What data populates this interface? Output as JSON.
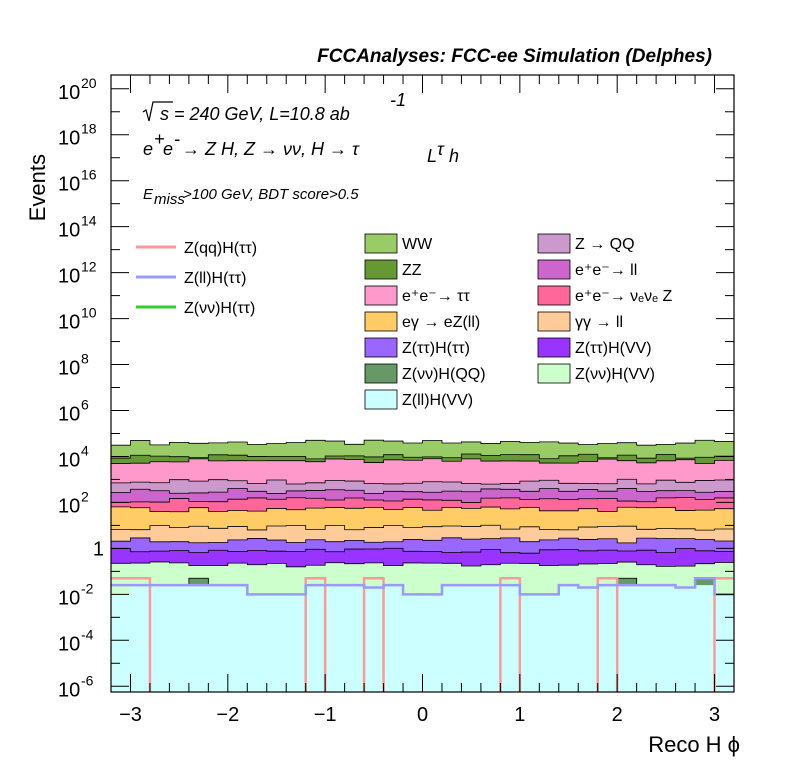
{
  "chart_data": {
    "type": "stacked-histogram",
    "header": "FCCAnalyses: FCC-ee Simulation (Delphes)",
    "annotations": {
      "energy": "s = 240 GeV, L=10.8 ab",
      "energy_exp": "-1",
      "process_a": "e",
      "process_b": "e",
      "process_c": " → Z H, Z  → νν, H  → τ",
      "process_d": "τ",
      "sub_L": "L",
      "sub_h": "h",
      "cut_a": "E",
      "cut_sub": "miss",
      "cut_b": ">100 GeV, BDT score>0.5"
    },
    "xlabel": "Reco H ϕ",
    "ylabel": "Events",
    "x_range": [
      -3.2,
      3.2
    ],
    "y_range_log10": [
      -6.25,
      20.6
    ],
    "log_y": true,
    "grid": false,
    "bins": 32,
    "x_ticks": [
      "−3",
      "−2",
      "−1",
      "0",
      "1",
      "2",
      "3"
    ],
    "x_tick_values": [
      -3,
      -2,
      -1,
      0,
      1,
      2,
      3
    ],
    "y_ticks": [
      {
        "base": "10",
        "exp": "20",
        "value": 20
      },
      {
        "base": "10",
        "exp": "18",
        "value": 18
      },
      {
        "base": "10",
        "exp": "16",
        "value": 16
      },
      {
        "base": "10",
        "exp": "14",
        "value": 14
      },
      {
        "base": "10",
        "exp": "12",
        "value": 12
      },
      {
        "base": "10",
        "exp": "10",
        "value": 10
      },
      {
        "base": "10",
        "exp": "8",
        "value": 8
      },
      {
        "base": "10",
        "exp": "6",
        "value": 6
      },
      {
        "base": "10",
        "exp": "4",
        "value": 4
      },
      {
        "base": "10",
        "exp": "2",
        "value": 2
      },
      {
        "base": "1",
        "exp": "",
        "value": 0
      },
      {
        "base": "10",
        "exp": "-2",
        "value": -2
      },
      {
        "base": "10",
        "exp": "-4",
        "value": -4
      },
      {
        "base": "10",
        "exp": "-6",
        "value": -6
      }
    ],
    "stacked_series": [
      {
        "name": "Z(ll)H(VV)",
        "color": "#ccffff",
        "level_log10": -2.0,
        "values_log10": [
          -2.0,
          -1.7,
          -1.6,
          -1.6,
          -1.6,
          -1.6,
          -1.6,
          -2.0,
          -2.0,
          -2.0,
          -1.6,
          -1.6,
          -1.6,
          -1.7,
          -1.6,
          -2.0,
          -2.0,
          -1.6,
          -1.6,
          -1.6,
          -1.6,
          -2.0,
          -2.0,
          -1.6,
          -1.7,
          -1.6,
          -1.6,
          -1.6,
          -1.6,
          -1.7,
          -1.6,
          -2.0
        ]
      },
      {
        "name": "Z(νν)H(QQ)",
        "color": "#669966",
        "level_log10": -1.3,
        "values_log10": [
          null,
          null,
          null,
          null,
          -1.3,
          null,
          null,
          null,
          null,
          null,
          null,
          null,
          -2.3,
          null,
          -2.3,
          null,
          -2.3,
          null,
          null,
          -2.3,
          null,
          null,
          null,
          null,
          null,
          null,
          -1.3,
          null,
          null,
          null,
          -1.3,
          null
        ]
      },
      {
        "name": "Z(νν)H(VV)",
        "color": "#ccffcc",
        "level_log10": -0.7
      },
      {
        "name": "Z(ττ)H(VV)",
        "color": "#9933ff",
        "level_log10": -0.1
      },
      {
        "name": "Z(ττ)H(ττ)",
        "color": "#9966ff",
        "level_log10": 0.35
      },
      {
        "name": "γγ → ll",
        "color": "#ffcc99",
        "level_log10": 0.9
      },
      {
        "name": "eγ → eZ(ll)",
        "color": "#ffcc66",
        "level_log10": 1.7
      },
      {
        "name": "e⁺e⁻→ ν_e ν_e Z",
        "color": "#ff6699",
        "level_log10": 2.1
      },
      {
        "name": "e⁺e⁻→ ll",
        "color": "#cc66cc",
        "level_log10": 2.5
      },
      {
        "name": "Z → QQ",
        "color": "#cc99cc",
        "level_log10": 2.9
      },
      {
        "name": "e⁺e⁻→ ττ",
        "color": "#ff99cc",
        "level_log10": 3.8
      },
      {
        "name": "ZZ",
        "color": "#669933",
        "level_log10": 4.0
      },
      {
        "name": "WW",
        "color": "#99cc66",
        "level_log10": 4.6
      }
    ],
    "line_series": [
      {
        "name": "Z(qq)H(ττ)",
        "color": "#ff9999",
        "values_log10": [
          -1.3,
          -1.3,
          null,
          null,
          null,
          null,
          null,
          null,
          null,
          null,
          -1.3,
          null,
          null,
          -1.3,
          null,
          null,
          null,
          null,
          null,
          null,
          -1.3,
          null,
          null,
          null,
          null,
          -1.3,
          null,
          null,
          null,
          null,
          null,
          -1.3
        ]
      },
      {
        "name": "Z(ll)H(ττ)",
        "color": "#9999ff",
        "values_log10": [
          -1.6,
          -1.6,
          -1.6,
          -1.6,
          -1.6,
          -1.6,
          -1.6,
          -2.0,
          -2.0,
          -2.0,
          -1.6,
          -1.6,
          -1.6,
          -1.7,
          -1.6,
          -2.0,
          -2.0,
          -1.6,
          -1.6,
          -1.6,
          -1.6,
          -2.0,
          -2.0,
          -1.6,
          -1.7,
          -1.6,
          -1.6,
          -1.6,
          -1.6,
          -1.7,
          -1.3,
          -2.0
        ]
      },
      {
        "name": "Z(νν)H(ττ)",
        "color": "#33cc33",
        "values_log10": []
      }
    ],
    "legend": {
      "lines": [
        "Z(qq)H(ττ)",
        "Z(ll)H(ττ)",
        "Z(νν)H(ττ)"
      ],
      "col1": [
        "WW",
        "ZZ",
        "e⁺e⁻→ ττ",
        "eγ → eZ(ll)",
        "Z(ττ)H(ττ)",
        "Z(νν)H(QQ)",
        "Z(ll)H(VV)"
      ],
      "col2": [
        "Z → QQ",
        "e⁺e⁻→ ll",
        "e⁺e⁻→ νₑνₑ Z",
        "γγ → ll",
        "Z(ττ)H(VV)",
        "Z(νν)H(VV)"
      ],
      "col1_colors": [
        "#99cc66",
        "#669933",
        "#ff99cc",
        "#ffcc66",
        "#9966ff",
        "#669966",
        "#ccffff"
      ],
      "col2_colors": [
        "#cc99cc",
        "#cc66cc",
        "#ff6699",
        "#ffcc99",
        "#9933ff",
        "#ccffcc"
      ],
      "line_colors": [
        "#ff9999",
        "#9999ff",
        "#33cc33"
      ]
    }
  }
}
